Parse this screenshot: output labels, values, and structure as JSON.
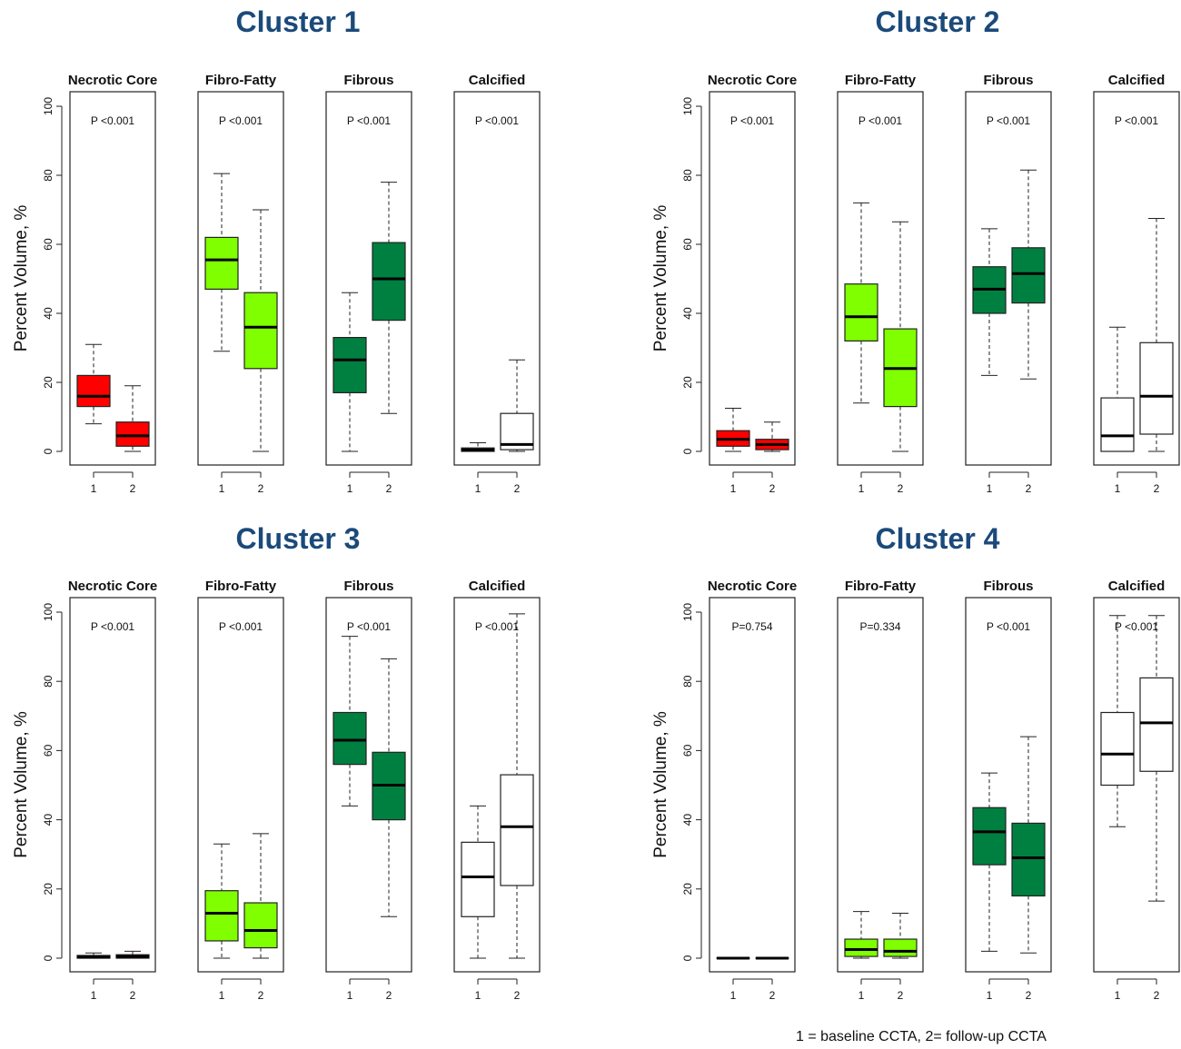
{
  "footnote": "1 = baseline CCTA, 2= follow-up CCTA",
  "colors": {
    "Necrotic Core": "#ff0000",
    "Fibro-Fatty": "#80ff00",
    "Fibrous": "#008040",
    "Calcified": "#ffffff",
    "title": "#1b4a7a"
  },
  "chart_data": [
    {
      "type": "box",
      "title": "Cluster 1",
      "ylabel": "Percent Volume, %",
      "ylim": [
        0,
        100
      ],
      "yticks": [
        0,
        20,
        40,
        60,
        80,
        100
      ],
      "categories": [
        "1",
        "2"
      ],
      "panels": [
        {
          "name": "Necrotic Core",
          "p": "P <0.001",
          "boxes": [
            {
              "x": "1",
              "min": 8,
              "q1": 13,
              "median": 16,
              "q3": 22,
              "max": 31
            },
            {
              "x": "2",
              "min": 0,
              "q1": 1.5,
              "median": 4.5,
              "q3": 8.5,
              "max": 19
            }
          ]
        },
        {
          "name": "Fibro-Fatty",
          "p": "P <0.001",
          "boxes": [
            {
              "x": "1",
              "min": 29,
              "q1": 47,
              "median": 55.5,
              "q3": 62,
              "max": 80.5
            },
            {
              "x": "2",
              "min": 0,
              "q1": 24,
              "median": 36,
              "q3": 46,
              "max": 70
            }
          ]
        },
        {
          "name": "Fibrous",
          "p": "P <0.001",
          "boxes": [
            {
              "x": "1",
              "min": 0,
              "q1": 17,
              "median": 26.5,
              "q3": 33,
              "max": 46
            },
            {
              "x": "2",
              "min": 11,
              "q1": 38,
              "median": 50,
              "q3": 60.5,
              "max": 78
            }
          ]
        },
        {
          "name": "Calcified",
          "p": "P <0.001",
          "boxes": [
            {
              "x": "1",
              "min": 0,
              "q1": 0,
              "median": 0.5,
              "q3": 1,
              "max": 2.5
            },
            {
              "x": "2",
              "min": 0,
              "q1": 0.5,
              "median": 2,
              "q3": 11,
              "max": 26.5
            }
          ]
        }
      ]
    },
    {
      "type": "box",
      "title": "Cluster 2",
      "ylabel": "Percent Volume, %",
      "ylim": [
        0,
        100
      ],
      "yticks": [
        0,
        20,
        40,
        60,
        80,
        100
      ],
      "categories": [
        "1",
        "2"
      ],
      "panels": [
        {
          "name": "Necrotic Core",
          "p": "P <0.001",
          "boxes": [
            {
              "x": "1",
              "min": 0,
              "q1": 1.5,
              "median": 3.5,
              "q3": 6,
              "max": 12.5
            },
            {
              "x": "2",
              "min": 0,
              "q1": 0.5,
              "median": 2,
              "q3": 3.5,
              "max": 8.5
            }
          ]
        },
        {
          "name": "Fibro-Fatty",
          "p": "P <0.001",
          "boxes": [
            {
              "x": "1",
              "min": 14,
              "q1": 32,
              "median": 39,
              "q3": 48.5,
              "max": 72
            },
            {
              "x": "2",
              "min": 0,
              "q1": 13,
              "median": 24,
              "q3": 35.5,
              "max": 66.5
            }
          ]
        },
        {
          "name": "Fibrous",
          "p": "P <0.001",
          "boxes": [
            {
              "x": "1",
              "min": 22,
              "q1": 40,
              "median": 47,
              "q3": 53.5,
              "max": 64.5
            },
            {
              "x": "2",
              "min": 21,
              "q1": 43,
              "median": 51.5,
              "q3": 59,
              "max": 81.5
            }
          ]
        },
        {
          "name": "Calcified",
          "p": "P <0.001",
          "boxes": [
            {
              "x": "1",
              "min": 0,
              "q1": 0,
              "median": 4.5,
              "q3": 15.5,
              "max": 36
            },
            {
              "x": "2",
              "min": 0,
              "q1": 5,
              "median": 16,
              "q3": 31.5,
              "max": 67.5
            }
          ]
        }
      ]
    },
    {
      "type": "box",
      "title": "Cluster 3",
      "ylabel": "Percent Volume, %",
      "ylim": [
        0,
        100
      ],
      "yticks": [
        0,
        20,
        40,
        60,
        80,
        100
      ],
      "categories": [
        "1",
        "2"
      ],
      "panels": [
        {
          "name": "Necrotic Core",
          "p": "P <0.001",
          "boxes": [
            {
              "x": "1",
              "min": 0,
              "q1": 0,
              "median": 0.3,
              "q3": 0.8,
              "max": 1.5
            },
            {
              "x": "2",
              "min": 0,
              "q1": 0,
              "median": 0.5,
              "q3": 1,
              "max": 2
            }
          ]
        },
        {
          "name": "Fibro-Fatty",
          "p": "P <0.001",
          "boxes": [
            {
              "x": "1",
              "min": 0,
              "q1": 5,
              "median": 13,
              "q3": 19.5,
              "max": 33
            },
            {
              "x": "2",
              "min": 0,
              "q1": 3,
              "median": 8,
              "q3": 16,
              "max": 36
            }
          ]
        },
        {
          "name": "Fibrous",
          "p": "P <0.001",
          "boxes": [
            {
              "x": "1",
              "min": 44,
              "q1": 56,
              "median": 63,
              "q3": 71,
              "max": 93
            },
            {
              "x": "2",
              "min": 12,
              "q1": 40,
              "median": 50,
              "q3": 59.5,
              "max": 86.5
            }
          ]
        },
        {
          "name": "Calcified",
          "p": "P <0.001",
          "boxes": [
            {
              "x": "1",
              "min": 0,
              "q1": 12,
              "median": 23.5,
              "q3": 33.5,
              "max": 44
            },
            {
              "x": "2",
              "min": 0,
              "q1": 21,
              "median": 38,
              "q3": 53,
              "max": 99.5
            }
          ]
        }
      ]
    },
    {
      "type": "box",
      "title": "Cluster 4",
      "ylabel": "Percent Volume, %",
      "ylim": [
        0,
        100
      ],
      "yticks": [
        0,
        20,
        40,
        60,
        80,
        100
      ],
      "categories": [
        "1",
        "2"
      ],
      "panels": [
        {
          "name": "Necrotic Core",
          "p": "P=0.754",
          "boxes": [
            {
              "x": "1",
              "min": 0,
              "q1": 0,
              "median": 0,
              "q3": 0,
              "max": 0
            },
            {
              "x": "2",
              "min": 0,
              "q1": 0,
              "median": 0,
              "q3": 0,
              "max": 0
            }
          ]
        },
        {
          "name": "Fibro-Fatty",
          "p": "P=0.334",
          "boxes": [
            {
              "x": "1",
              "min": 0,
              "q1": 0.5,
              "median": 2.5,
              "q3": 5.5,
              "max": 13.5
            },
            {
              "x": "2",
              "min": 0,
              "q1": 0.5,
              "median": 2,
              "q3": 5.5,
              "max": 13
            }
          ]
        },
        {
          "name": "Fibrous",
          "p": "P <0.001",
          "boxes": [
            {
              "x": "1",
              "min": 2,
              "q1": 27,
              "median": 36.5,
              "q3": 43.5,
              "max": 53.5
            },
            {
              "x": "2",
              "min": 1.5,
              "q1": 18,
              "median": 29,
              "q3": 39,
              "max": 64
            }
          ]
        },
        {
          "name": "Calcified",
          "p": "P <0.001",
          "boxes": [
            {
              "x": "1",
              "min": 38,
              "q1": 50,
              "median": 59,
              "q3": 71,
              "max": 99
            },
            {
              "x": "2",
              "min": 16.5,
              "q1": 54,
              "median": 68,
              "q3": 81,
              "max": 99
            }
          ]
        }
      ]
    }
  ]
}
